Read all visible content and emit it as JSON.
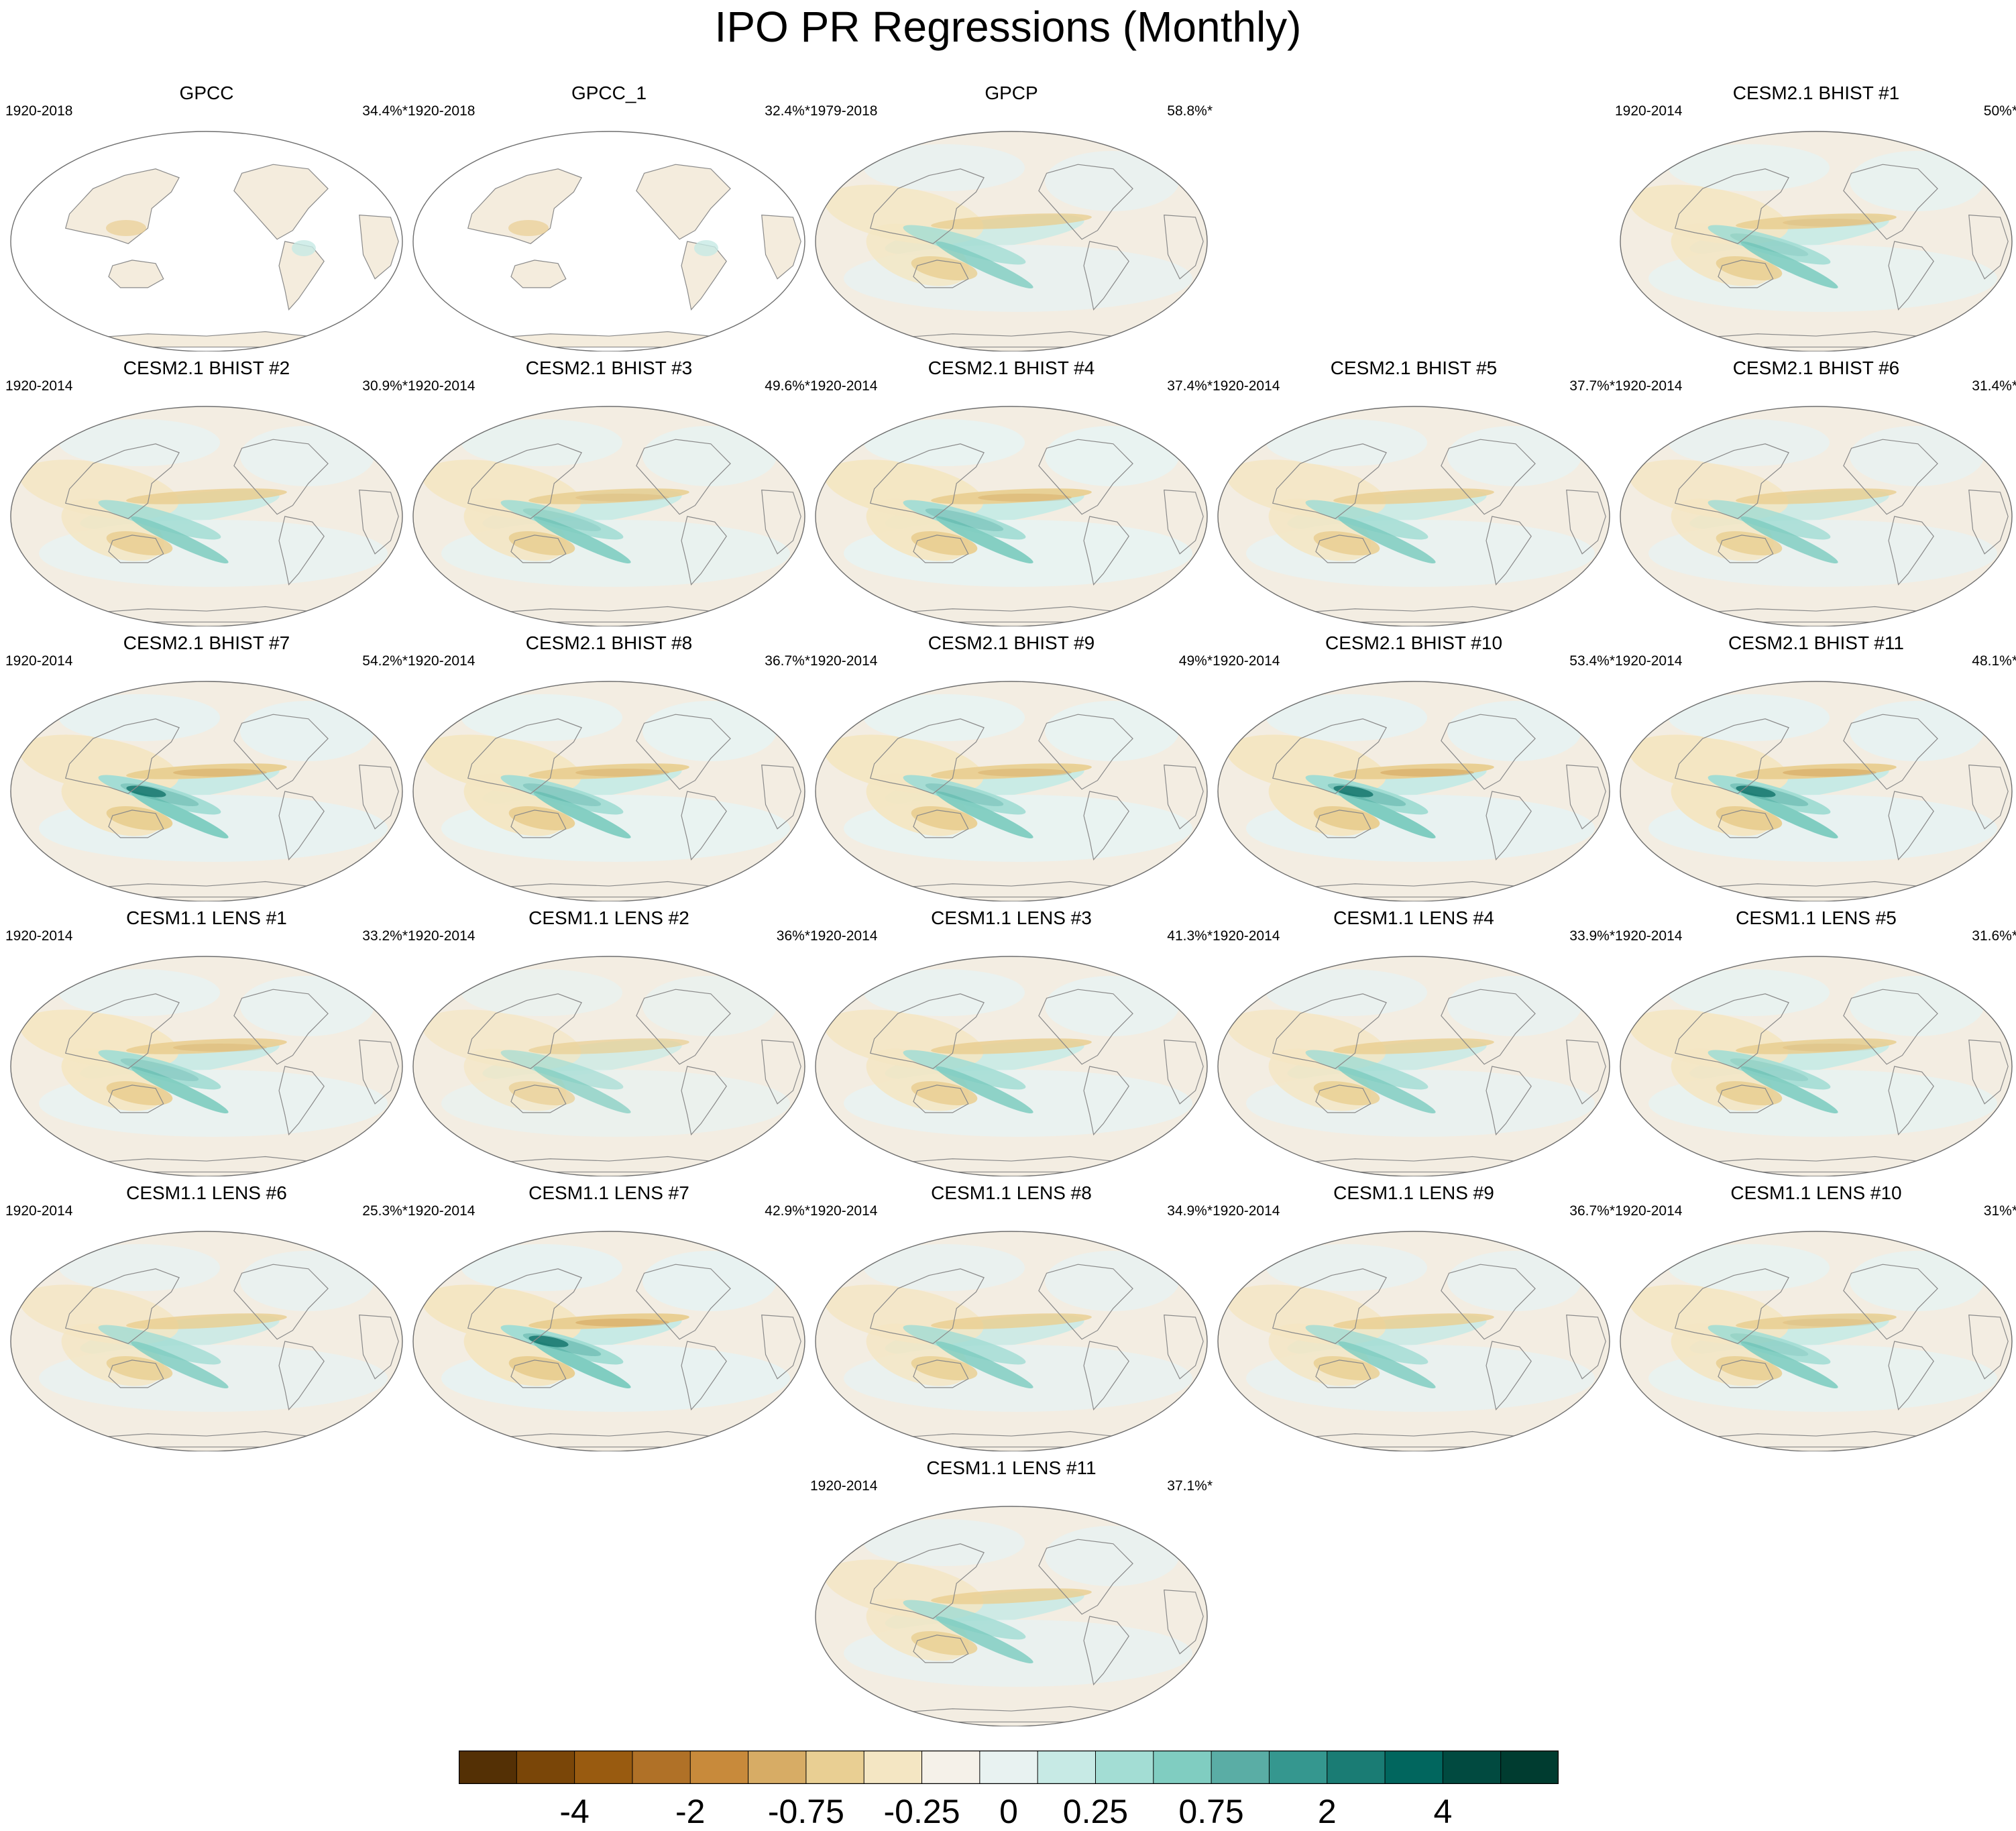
{
  "chart_data": {
    "type": "map-grid",
    "title": "IPO PR Regressions (Monthly)",
    "panels": [
      {
        "title": "GPCC",
        "period": "1920-2018",
        "pct": "34.4%*",
        "source": "obs_land",
        "strength": 0.2
      },
      {
        "title": "GPCC_1",
        "period": "1920-2018",
        "pct": "32.4%*",
        "source": "obs_land",
        "strength": 0.2
      },
      {
        "title": "GPCP",
        "period": "1979-2018",
        "pct": "58.8%*",
        "source": "obs",
        "strength": 0.6
      },
      null,
      {
        "title": "CESM2.1 BHIST #1",
        "period": "1920-2014",
        "pct": "50%*",
        "source": "model",
        "strength": 0.75
      },
      {
        "title": "CESM2.1 BHIST #2",
        "period": "1920-2014",
        "pct": "30.9%*",
        "source": "model",
        "strength": 0.7
      },
      {
        "title": "CESM2.1 BHIST #3",
        "period": "1920-2014",
        "pct": "49.6%*",
        "source": "model",
        "strength": 0.75
      },
      {
        "title": "CESM2.1 BHIST #4",
        "period": "1920-2014",
        "pct": "37.4%*",
        "source": "model",
        "strength": 0.85
      },
      {
        "title": "CESM2.1 BHIST #5",
        "period": "1920-2014",
        "pct": "37.7%*",
        "source": "model",
        "strength": 0.7
      },
      {
        "title": "CESM2.1 BHIST #6",
        "period": "1920-2014",
        "pct": "31.4%*",
        "source": "model",
        "strength": 0.65
      },
      {
        "title": "CESM2.1 BHIST #7",
        "period": "1920-2014",
        "pct": "54.2%*",
        "source": "model",
        "strength": 0.9
      },
      {
        "title": "CESM2.1 BHIST #8",
        "period": "1920-2014",
        "pct": "36.7%*",
        "source": "model",
        "strength": 0.85
      },
      {
        "title": "CESM2.1 BHIST #9",
        "period": "1920-2014",
        "pct": "49%*",
        "source": "model",
        "strength": 0.85
      },
      {
        "title": "CESM2.1 BHIST #10",
        "period": "1920-2014",
        "pct": "53.4%*",
        "source": "model",
        "strength": 0.95
      },
      {
        "title": "CESM2.1 BHIST #11",
        "period": "1920-2014",
        "pct": "48.1%*",
        "source": "model",
        "strength": 0.95
      },
      {
        "title": "CESM1.1 LENS #1",
        "period": "1920-2014",
        "pct": "33.2%*",
        "source": "model",
        "strength": 0.8
      },
      {
        "title": "CESM1.1 LENS #2",
        "period": "1920-2014",
        "pct": "36%*",
        "source": "model",
        "strength": 0.45
      },
      {
        "title": "CESM1.1 LENS #3",
        "period": "1920-2014",
        "pct": "41.3%*",
        "source": "model",
        "strength": 0.7
      },
      {
        "title": "CESM1.1 LENS #4",
        "period": "1920-2014",
        "pct": "33.9%*",
        "source": "model",
        "strength": 0.65
      },
      {
        "title": "CESM1.1 LENS #5",
        "period": "1920-2014",
        "pct": "31.6%*",
        "source": "model",
        "strength": 0.75
      },
      {
        "title": "CESM1.1 LENS #6",
        "period": "1920-2014",
        "pct": "25.3%*",
        "source": "model",
        "strength": 0.65
      },
      {
        "title": "CESM1.1 LENS #7",
        "period": "1920-2014",
        "pct": "42.9%*",
        "source": "model",
        "strength": 0.95
      },
      {
        "title": "CESM1.1 LENS #8",
        "period": "1920-2014",
        "pct": "34.9%*",
        "source": "model",
        "strength": 0.65
      },
      {
        "title": "CESM1.1 LENS #9",
        "period": "1920-2014",
        "pct": "36.7%*",
        "source": "model",
        "strength": 0.65
      },
      {
        "title": "CESM1.1 LENS #10",
        "period": "1920-2014",
        "pct": "31%*",
        "source": "model",
        "strength": 0.75
      },
      null,
      null,
      {
        "title": "CESM1.1 LENS #11",
        "period": "1920-2014",
        "pct": "37.1%*",
        "source": "model",
        "strength": 0.65
      }
    ],
    "colorbar": {
      "colors": [
        "#543005",
        "#7a4608",
        "#995b10",
        "#b07127",
        "#c88a3b",
        "#d7ac65",
        "#e9cf93",
        "#f4e6c3",
        "#f5f1e9",
        "#e8f2f1",
        "#c7eae5",
        "#a3ddd4",
        "#80cdc1",
        "#5aada5",
        "#35978f",
        "#1a7c74",
        "#01665e",
        "#014a40",
        "#003c30"
      ],
      "tick_labels": [
        "-4",
        "-2",
        "-0.75",
        "-0.25",
        "0",
        "0.25",
        "0.75",
        "2",
        "4"
      ],
      "tick_boundaries": [
        2,
        4,
        6,
        8,
        9.5,
        11,
        13,
        15,
        17
      ]
    }
  }
}
